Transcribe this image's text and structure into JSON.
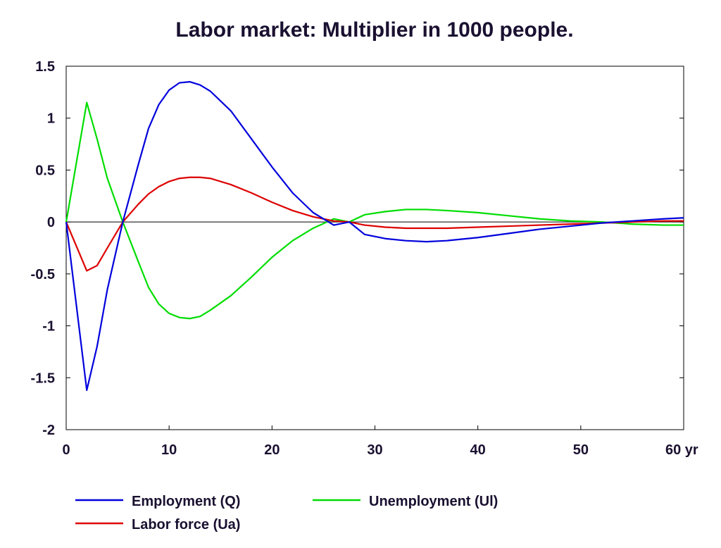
{
  "chart_data": {
    "type": "line",
    "title": "Labor market: Multiplier in 1000 people.",
    "xlabel": "",
    "ylabel": "",
    "x_unit_label": "yr",
    "xlim": [
      0,
      60
    ],
    "ylim": [
      -2,
      1.5
    ],
    "x_ticks": [
      0,
      10,
      20,
      30,
      40,
      50,
      60
    ],
    "y_ticks": [
      1.5,
      1,
      0.5,
      0,
      -0.5,
      -1,
      -1.5,
      -2
    ],
    "x_tick_labels": [
      "0",
      "10",
      "20",
      "30",
      "40",
      "50",
      "60"
    ],
    "y_tick_labels": [
      "1.5",
      "1",
      "0.5",
      "0",
      "-0.5",
      "-1",
      "-1.5",
      "-2"
    ],
    "grid": false,
    "zero_line": true,
    "legend_position": "bottom",
    "x": [
      0,
      2,
      3,
      4,
      5.5,
      7,
      8,
      9,
      10,
      11,
      12,
      13,
      14,
      16,
      18,
      20,
      22,
      24,
      26,
      27.5,
      29,
      31,
      33,
      35,
      37,
      40,
      43,
      46,
      49,
      52,
      55,
      58,
      60
    ],
    "series": [
      {
        "name": "Employment (Q)",
        "color": "#0000dd",
        "values": [
          0,
          -1.62,
          -1.2,
          -0.65,
          0,
          0.55,
          0.9,
          1.13,
          1.27,
          1.34,
          1.35,
          1.32,
          1.26,
          1.07,
          0.8,
          0.53,
          0.28,
          0.09,
          -0.03,
          0,
          -0.12,
          -0.16,
          -0.18,
          -0.19,
          -0.18,
          -0.15,
          -0.11,
          -0.07,
          -0.04,
          -0.01,
          0.01,
          0.03,
          0.04
        ]
      },
      {
        "name": "Labor force (Ua)",
        "color": "#dd0000",
        "values": [
          0,
          -0.47,
          -0.42,
          -0.25,
          0,
          0.17,
          0.27,
          0.34,
          0.39,
          0.42,
          0.43,
          0.43,
          0.42,
          0.36,
          0.28,
          0.19,
          0.11,
          0.05,
          0.01,
          0,
          -0.03,
          -0.05,
          -0.06,
          -0.06,
          -0.06,
          -0.05,
          -0.04,
          -0.03,
          -0.02,
          -0.01,
          0,
          0.01,
          0.01
        ]
      },
      {
        "name": "Unemployment (Ul)",
        "color": "#00dd00",
        "values": [
          0,
          1.15,
          0.8,
          0.42,
          0,
          -0.38,
          -0.63,
          -0.79,
          -0.88,
          -0.92,
          -0.93,
          -0.91,
          -0.85,
          -0.71,
          -0.53,
          -0.34,
          -0.18,
          -0.06,
          0.03,
          0,
          0.07,
          0.1,
          0.12,
          0.12,
          0.11,
          0.09,
          0.06,
          0.03,
          0.01,
          0,
          -0.02,
          -0.03,
          -0.03
        ]
      }
    ]
  }
}
